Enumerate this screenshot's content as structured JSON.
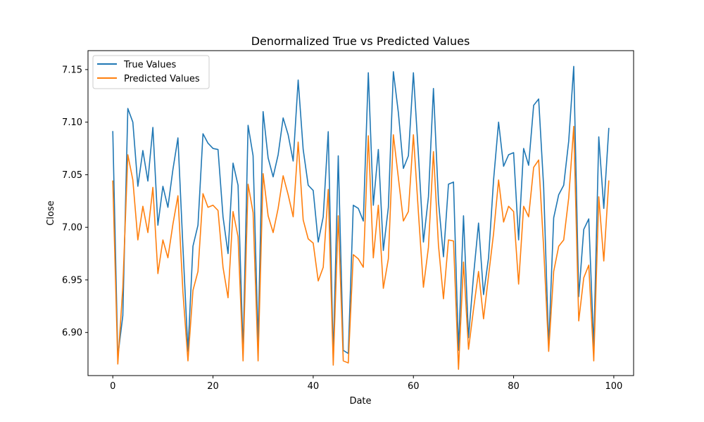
{
  "chart_data": {
    "type": "line",
    "title": "Denormalized True vs Predicted Values",
    "xlabel": "Date",
    "ylabel": "Close",
    "xlim": [
      -4.95,
      103.95
    ],
    "ylim": [
      6.859,
      7.168
    ],
    "x_ticks": [
      0,
      20,
      40,
      60,
      80,
      100
    ],
    "y_ticks": [
      6.9,
      6.95,
      7.0,
      7.05,
      7.1,
      7.15
    ],
    "y_tick_labels": [
      "6.90",
      "6.95",
      "7.00",
      "7.05",
      "7.10",
      "7.15"
    ],
    "grid": false,
    "legend_position": "top-left",
    "series": [
      {
        "name": "True Values",
        "color": "#1f77b4",
        "values": [
          7.091,
          6.877,
          6.916,
          7.113,
          7.1,
          7.039,
          7.073,
          7.044,
          7.095,
          7.002,
          7.039,
          7.019,
          7.055,
          7.085,
          6.981,
          6.882,
          6.982,
          7.002,
          7.089,
          7.08,
          7.075,
          7.074,
          7.01,
          6.975,
          7.061,
          7.04,
          6.882,
          7.097,
          7.068,
          6.89,
          7.11,
          7.066,
          7.048,
          7.069,
          7.104,
          7.088,
          7.063,
          7.14,
          7.074,
          7.04,
          7.035,
          6.986,
          7.01,
          7.091,
          6.877,
          7.068,
          6.883,
          6.88,
          7.021,
          7.018,
          7.006,
          7.147,
          7.021,
          7.074,
          6.978,
          7.019,
          7.148,
          7.109,
          7.056,
          7.068,
          7.147,
          7.069,
          6.986,
          7.029,
          7.132,
          7.025,
          6.972,
          7.041,
          7.043,
          6.883,
          7.011,
          6.895,
          6.954,
          7.004,
          6.936,
          6.971,
          7.045,
          7.1,
          7.058,
          7.069,
          7.071,
          6.988,
          7.075,
          7.059,
          7.116,
          7.122,
          7.038,
          6.887,
          7.009,
          7.031,
          7.04,
          7.082,
          7.153,
          6.934,
          6.998,
          7.008,
          6.886,
          7.086,
          7.018,
          7.094
        ]
      },
      {
        "name": "Predicted Values",
        "color": "#ff7f0e",
        "values": [
          7.044,
          6.87,
          6.943,
          7.069,
          7.045,
          6.988,
          7.02,
          6.995,
          7.038,
          6.956,
          6.988,
          6.971,
          7.003,
          7.03,
          6.938,
          6.873,
          6.94,
          6.958,
          7.032,
          7.019,
          7.021,
          7.016,
          6.962,
          6.933,
          7.015,
          6.991,
          6.873,
          7.041,
          7.014,
          6.873,
          7.051,
          7.011,
          6.995,
          7.018,
          7.049,
          7.031,
          7.01,
          7.081,
          7.007,
          6.989,
          6.985,
          6.949,
          6.962,
          7.036,
          6.869,
          7.011,
          6.873,
          6.871,
          6.974,
          6.97,
          6.962,
          7.087,
          6.971,
          7.021,
          6.942,
          6.97,
          7.088,
          7.047,
          7.006,
          7.015,
          7.088,
          7.014,
          6.943,
          6.981,
          7.072,
          6.983,
          6.932,
          6.988,
          6.987,
          6.865,
          6.967,
          6.884,
          6.922,
          6.958,
          6.913,
          6.954,
          6.994,
          7.045,
          7.005,
          7.02,
          7.015,
          6.946,
          7.02,
          7.01,
          7.057,
          7.064,
          6.98,
          6.882,
          6.958,
          6.982,
          6.988,
          7.028,
          7.096,
          6.911,
          6.952,
          6.964,
          6.873,
          7.029,
          6.968,
          7.044
        ]
      }
    ]
  }
}
